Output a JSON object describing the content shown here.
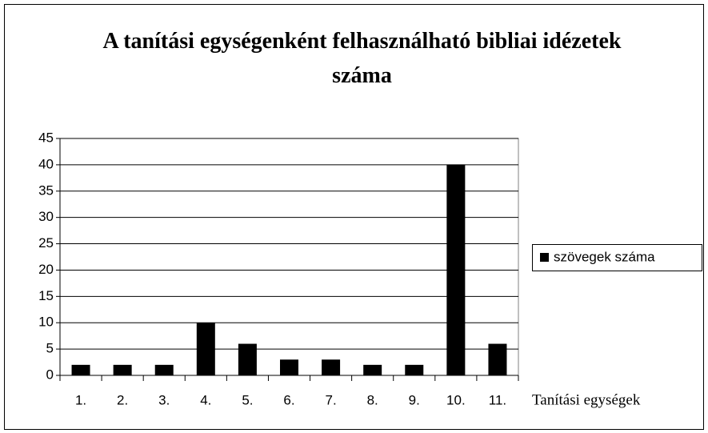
{
  "chart_data": {
    "type": "bar",
    "title": "A tanítási egységenként felhasználható bibliai idézetek száma",
    "x_label": "Tanítási egységek",
    "categories": [
      "1.",
      "2.",
      "3.",
      "4.",
      "5.",
      "6.",
      "7.",
      "8.",
      "9.",
      "10.",
      "11."
    ],
    "series": [
      {
        "name": "szövegek száma",
        "color": "#000000",
        "values": [
          2,
          2,
          2,
          10,
          6,
          3,
          3,
          2,
          2,
          40,
          6
        ]
      }
    ],
    "ylim": [
      0,
      45
    ],
    "yticks": [
      0,
      5,
      10,
      15,
      20,
      25,
      30,
      35,
      40,
      45
    ],
    "grid": true,
    "legend": "right"
  }
}
